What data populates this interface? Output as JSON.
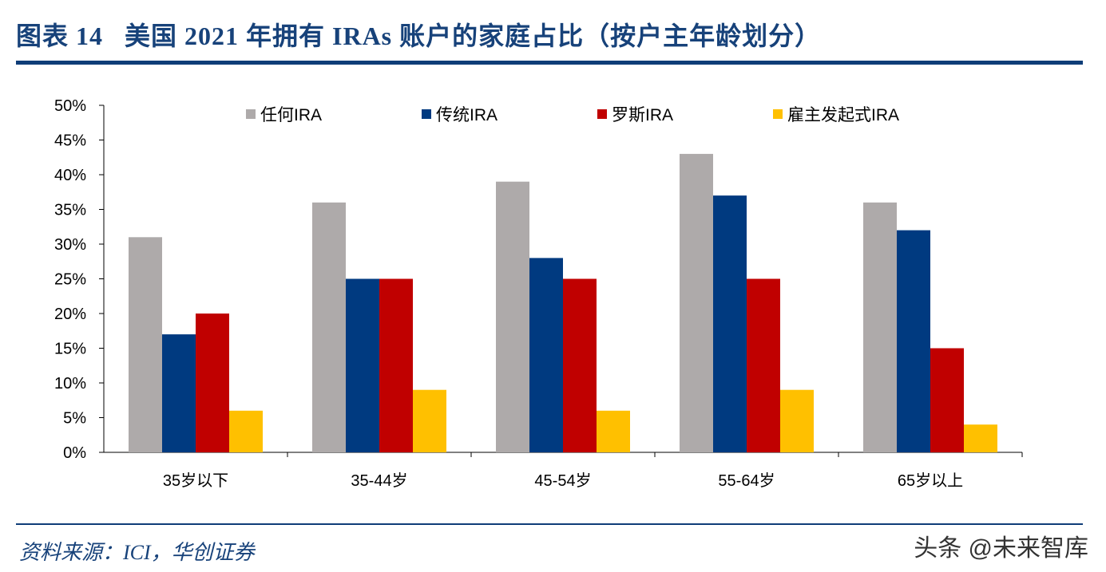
{
  "header": {
    "title": "图表 14   美国 2021 年拥有 IRAs 账户的家庭占比（按户主年龄划分）"
  },
  "footer": {
    "source": "资料来源：ICI，华创证券",
    "watermark": "头条 @未来智库"
  },
  "chart_data": {
    "type": "bar",
    "categories": [
      "35岁以下",
      "35-44岁",
      "45-54岁",
      "55-64岁",
      "65岁以上"
    ],
    "series": [
      {
        "name": "任何IRA",
        "color": "#aeaaaa",
        "values": [
          31,
          36,
          39,
          43,
          36
        ]
      },
      {
        "name": "传统IRA",
        "color": "#003a80",
        "values": [
          17,
          25,
          28,
          37,
          32
        ]
      },
      {
        "name": "罗斯IRA",
        "color": "#c00000",
        "values": [
          20,
          25,
          25,
          25,
          15
        ]
      },
      {
        "name": "雇主发起式IRA",
        "color": "#ffc000",
        "values": [
          6,
          9,
          6,
          9,
          4
        ]
      }
    ],
    "ylim": [
      0,
      50
    ],
    "yticks": [
      "0%",
      "5%",
      "10%",
      "15%",
      "20%",
      "25%",
      "30%",
      "35%",
      "40%",
      "45%",
      "50%"
    ],
    "grid": false,
    "legend": "top"
  }
}
